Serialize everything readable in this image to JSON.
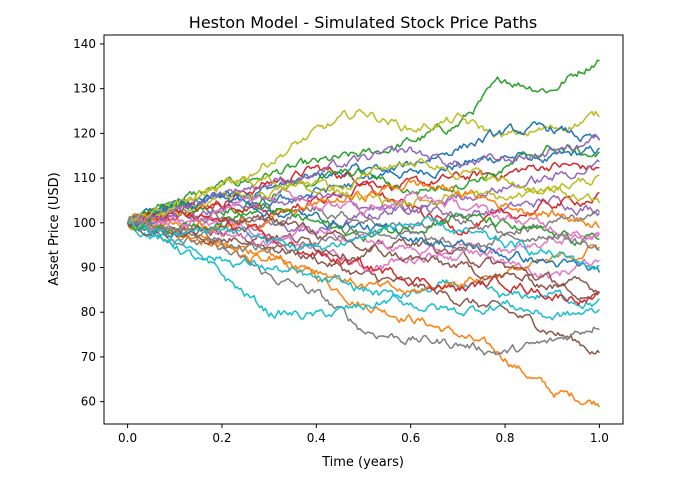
{
  "chart_data": {
    "type": "line",
    "title": "Heston Model - Simulated Stock Price Paths",
    "xlabel": "Time (years)",
    "ylabel": "Asset Price (USD)",
    "xlim": [
      -0.05,
      1.05
    ],
    "ylim": [
      55,
      142
    ],
    "xticks": [
      0.0,
      0.2,
      0.4,
      0.6,
      0.8,
      1.0
    ],
    "xtick_labels": [
      "0.0",
      "0.2",
      "0.4",
      "0.6",
      "0.8",
      "1.0"
    ],
    "yticks": [
      60,
      70,
      80,
      90,
      100,
      110,
      120,
      130,
      140
    ],
    "ytick_labels": [
      "60",
      "70",
      "80",
      "90",
      "100",
      "110",
      "120",
      "130",
      "140"
    ],
    "grid": false,
    "legend": "none",
    "colors": [
      "#1f77b4",
      "#ff7f0e",
      "#2ca02c",
      "#d62728",
      "#9467bd",
      "#8c564b",
      "#e377c2",
      "#7f7f7f",
      "#bcbd22",
      "#17becf"
    ],
    "x": [
      0.0,
      0.1,
      0.2,
      0.3,
      0.4,
      0.5,
      0.6,
      0.7,
      0.8,
      0.9,
      1.0
    ],
    "series": [
      {
        "values": [
          100,
          104,
          106,
          108,
          110,
          112,
          111,
          113,
          115,
          114,
          116
        ]
      },
      {
        "values": [
          100,
          98,
          94,
          92,
          88,
          82,
          79,
          75,
          70,
          62,
          60
        ]
      },
      {
        "values": [
          100,
          105,
          108,
          111,
          113,
          115,
          118,
          122,
          132,
          130,
          137
        ]
      },
      {
        "values": [
          100,
          103,
          105,
          109,
          112,
          110,
          108,
          110,
          111,
          113,
          112
        ]
      },
      {
        "values": [
          100,
          102,
          101,
          99,
          98,
          101,
          104,
          102,
          103,
          105,
          103
        ]
      },
      {
        "values": [
          100,
          99,
          97,
          95,
          92,
          88,
          86,
          83,
          80,
          76,
          71
        ]
      },
      {
        "values": [
          100,
          101,
          98,
          96,
          94,
          90,
          92,
          95,
          91,
          88,
          92
        ]
      },
      {
        "values": [
          100,
          97,
          94,
          88,
          84,
          76,
          74,
          73,
          71,
          73,
          78
        ]
      },
      {
        "values": [
          100,
          104,
          107,
          114,
          120,
          125,
          121,
          123,
          119,
          121,
          124
        ]
      },
      {
        "values": [
          100,
          95,
          88,
          80,
          79,
          81,
          84,
          86,
          83,
          84,
          82
        ]
      },
      {
        "values": [
          100,
          103,
          106,
          104,
          107,
          109,
          113,
          117,
          120,
          121,
          118
        ]
      },
      {
        "values": [
          100,
          97,
          95,
          93,
          90,
          86,
          84,
          87,
          89,
          91,
          95
        ]
      },
      {
        "values": [
          100,
          104,
          103,
          106,
          110,
          111,
          107,
          109,
          112,
          117,
          115
        ]
      },
      {
        "values": [
          100,
          102,
          104,
          102,
          105,
          108,
          103,
          99,
          101,
          104,
          106
        ]
      },
      {
        "values": [
          100,
          101,
          103,
          104,
          106,
          104,
          102,
          106,
          108,
          110,
          113
        ]
      },
      {
        "values": [
          100,
          98,
          96,
          98,
          95,
          93,
          96,
          93,
          90,
          87,
          85
        ]
      },
      {
        "values": [
          100,
          99,
          100,
          97,
          99,
          96,
          94,
          92,
          94,
          96,
          98
        ]
      },
      {
        "values": [
          100,
          103,
          102,
          100,
          103,
          101,
          99,
          101,
          98,
          100,
          101
        ]
      },
      {
        "values": [
          100,
          102,
          105,
          107,
          109,
          106,
          104,
          107,
          105,
          108,
          110
        ]
      },
      {
        "values": [
          100,
          96,
          92,
          90,
          87,
          85,
          82,
          80,
          82,
          79,
          80
        ]
      },
      {
        "values": [
          100,
          104,
          106,
          103,
          101,
          99,
          97,
          95,
          93,
          91,
          89
        ]
      },
      {
        "values": [
          100,
          101,
          99,
          101,
          104,
          106,
          109,
          107,
          104,
          102,
          100
        ]
      },
      {
        "values": [
          100,
          99,
          101,
          103,
          100,
          97,
          99,
          102,
          99,
          97,
          96
        ]
      },
      {
        "values": [
          100,
          102,
          100,
          96,
          93,
          90,
          88,
          85,
          87,
          84,
          83
        ]
      },
      {
        "values": [
          100,
          103,
          107,
          109,
          111,
          114,
          116,
          113,
          114,
          116,
          119
        ]
      },
      {
        "values": [
          100,
          98,
          99,
          101,
          98,
          94,
          92,
          90,
          88,
          86,
          84
        ]
      },
      {
        "values": [
          100,
          101,
          104,
          107,
          105,
          103,
          106,
          104,
          101,
          99,
          97
        ]
      },
      {
        "values": [
          100,
          100,
          96,
          94,
          96,
          99,
          97,
          94,
          96,
          98,
          94
        ]
      },
      {
        "values": [
          100,
          104,
          108,
          110,
          107,
          111,
          114,
          112,
          109,
          107,
          104
        ]
      },
      {
        "values": [
          100,
          97,
          99,
          96,
          94,
          97,
          100,
          98,
          95,
          93,
          90
        ]
      }
    ]
  }
}
